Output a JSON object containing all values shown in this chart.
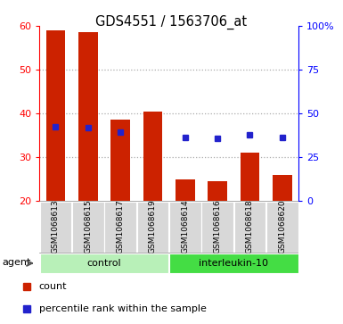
{
  "title": "GDS4551 / 1563706_at",
  "samples": [
    "GSM1068613",
    "GSM1068615",
    "GSM1068617",
    "GSM1068619",
    "GSM1068614",
    "GSM1068616",
    "GSM1068618",
    "GSM1068620"
  ],
  "counts": [
    59,
    58.5,
    38.5,
    40.5,
    25,
    24.5,
    31,
    26
  ],
  "percentile_ranks": [
    42.5,
    42,
    39.5,
    null,
    36.5,
    35.5,
    38,
    36.5
  ],
  "ylim_left": [
    20,
    60
  ],
  "ylim_right": [
    0,
    100
  ],
  "yticks_left": [
    20,
    30,
    40,
    50,
    60
  ],
  "yticks_right": [
    0,
    25,
    50,
    75,
    100
  ],
  "yticklabels_right": [
    "0",
    "25",
    "50",
    "75",
    "100%"
  ],
  "groups": [
    {
      "label": "control",
      "indices": [
        0,
        3
      ],
      "color": "#b8f0b8"
    },
    {
      "label": "interleukin-10",
      "indices": [
        4,
        7
      ],
      "color": "#44dd44"
    }
  ],
  "agent_label": "agent",
  "bar_color": "#cc2200",
  "dot_color": "#2222cc",
  "bg_color": "#d8d8d8",
  "plot_bg": "#ffffff",
  "legend_count_label": "count",
  "legend_pct_label": "percentile rank within the sample",
  "grid_yticks": [
    30,
    40,
    50
  ]
}
